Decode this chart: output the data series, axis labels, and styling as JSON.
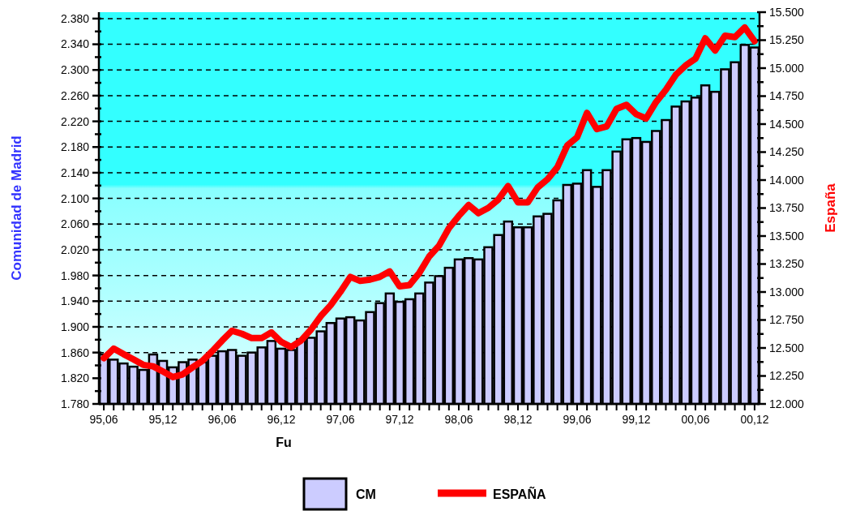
{
  "chart_data": {
    "type": "bar",
    "xlabel": "Fu",
    "ylabel": "Comunidad de Madrid",
    "y2label": "España",
    "categories": [
      "95,06",
      null,
      null,
      null,
      null,
      null,
      "95,12",
      null,
      null,
      null,
      null,
      null,
      "96,06",
      null,
      null,
      null,
      null,
      null,
      "96,12",
      null,
      null,
      null,
      null,
      null,
      "97,06",
      null,
      null,
      null,
      null,
      null,
      "97,12",
      null,
      null,
      null,
      null,
      null,
      "98,06",
      null,
      null,
      null,
      null,
      null,
      "98,12",
      null,
      null,
      null,
      null,
      null,
      "99,06",
      null,
      null,
      null,
      null,
      null,
      "99,12",
      null,
      null,
      null,
      null,
      null,
      "00,06",
      null,
      null,
      null,
      null,
      null,
      "00,12"
    ],
    "series": [
      {
        "name": "CM",
        "color": "#ccccff",
        "values": [
          1857,
          1849,
          1843,
          1838,
          1833,
          1857,
          1847,
          1837,
          1845,
          1849,
          1845,
          1855,
          1862,
          1864,
          1855,
          1860,
          1868,
          1878,
          1866,
          1864,
          1881,
          1883,
          1893,
          1906,
          1913,
          1915,
          1910,
          1923,
          1937,
          1952,
          1939,
          1943,
          1952,
          1969,
          1979,
          1992,
          2005,
          2007,
          2005,
          2024,
          2043,
          2064,
          2055,
          2055,
          2072,
          2076,
          2097,
          2121,
          2123,
          2144,
          2118,
          2144,
          2173,
          2192,
          2194,
          2188,
          2205,
          2222,
          2243,
          2251,
          2257,
          2276,
          2266,
          2301,
          2312,
          2339,
          2335
        ]
      },
      {
        "name": "ESPAÑA",
        "type": "line",
        "axis": "y2",
        "color": "#ff0000",
        "values": [
          12409,
          12494,
          12445,
          12399,
          12349,
          12336,
          12290,
          12240,
          12264,
          12327,
          12385,
          12472,
          12566,
          12654,
          12627,
          12588,
          12588,
          12639,
          12554,
          12508,
          12566,
          12663,
          12784,
          12881,
          13002,
          13135,
          13099,
          13111,
          13135,
          13184,
          13051,
          13062,
          13171,
          13317,
          13414,
          13571,
          13680,
          13777,
          13704,
          13752,
          13825,
          13946,
          13801,
          13801,
          13934,
          14007,
          14115,
          14309,
          14382,
          14600,
          14455,
          14479,
          14636,
          14672,
          14588,
          14551,
          14696,
          14806,
          14939,
          15023,
          15084,
          15266,
          15157,
          15290,
          15277,
          15363,
          15241
        ]
      }
    ],
    "ylim": [
      1780,
      2390
    ],
    "yticks": [
      {
        "value": 1780,
        "label": "1.780"
      },
      {
        "value": 1800,
        "label": null
      },
      {
        "value": 1820,
        "label": "1.820"
      },
      {
        "value": 1840,
        "label": null
      },
      {
        "value": 1860,
        "label": "1.860"
      },
      {
        "value": 1880,
        "label": null
      },
      {
        "value": 1900,
        "label": "1.900"
      },
      {
        "value": 1920,
        "label": null
      },
      {
        "value": 1940,
        "label": "1.940"
      },
      {
        "value": 1960,
        "label": null
      },
      {
        "value": 1980,
        "label": "1.980"
      },
      {
        "value": 2000,
        "label": null
      },
      {
        "value": 2020,
        "label": "2.020"
      },
      {
        "value": 2040,
        "label": null
      },
      {
        "value": 2060,
        "label": "2.060"
      },
      {
        "value": 2080,
        "label": null
      },
      {
        "value": 2100,
        "label": "2.100"
      },
      {
        "value": 2120,
        "label": null
      },
      {
        "value": 2140,
        "label": "2.140"
      },
      {
        "value": 2160,
        "label": null
      },
      {
        "value": 2180,
        "label": "2.180"
      },
      {
        "value": 2200,
        "label": null
      },
      {
        "value": 2220,
        "label": "2.220"
      },
      {
        "value": 2240,
        "label": null
      },
      {
        "value": 2260,
        "label": "2.260"
      },
      {
        "value": 2280,
        "label": null
      },
      {
        "value": 2300,
        "label": "2.300"
      },
      {
        "value": 2320,
        "label": null
      },
      {
        "value": 2340,
        "label": "2.340"
      },
      {
        "value": 2360,
        "label": null
      },
      {
        "value": 2380,
        "label": "2.380"
      }
    ],
    "y2lim": [
      12000,
      15500
    ],
    "y2ticks": [
      {
        "value": 12000,
        "label": "12.000"
      },
      {
        "value": 12125,
        "label": null
      },
      {
        "value": 12250,
        "label": "12.250"
      },
      {
        "value": 12375,
        "label": null
      },
      {
        "value": 12500,
        "label": "12.500"
      },
      {
        "value": 12625,
        "label": null
      },
      {
        "value": 12750,
        "label": "12.750"
      },
      {
        "value": 12875,
        "label": null
      },
      {
        "value": 13000,
        "label": "13.000"
      },
      {
        "value": 13125,
        "label": null
      },
      {
        "value": 13250,
        "label": "13.250"
      },
      {
        "value": 13375,
        "label": null
      },
      {
        "value": 13500,
        "label": "13.500"
      },
      {
        "value": 13625,
        "label": null
      },
      {
        "value": 13750,
        "label": "13.750"
      },
      {
        "value": 13875,
        "label": null
      },
      {
        "value": 14000,
        "label": "14.000"
      },
      {
        "value": 14125,
        "label": null
      },
      {
        "value": 14250,
        "label": "14.250"
      },
      {
        "value": 14375,
        "label": null
      },
      {
        "value": 14500,
        "label": "14.500"
      },
      {
        "value": 14625,
        "label": null
      },
      {
        "value": 14750,
        "label": "14.750"
      },
      {
        "value": 14875,
        "label": null
      },
      {
        "value": 15000,
        "label": "15.000"
      },
      {
        "value": 15125,
        "label": null
      },
      {
        "value": 15250,
        "label": "15.250"
      },
      {
        "value": 15375,
        "label": null
      },
      {
        "value": 15500,
        "label": "15.500"
      }
    ],
    "grid": "y",
    "legend": "bottom",
    "line_style": "solid",
    "marker": "none"
  }
}
